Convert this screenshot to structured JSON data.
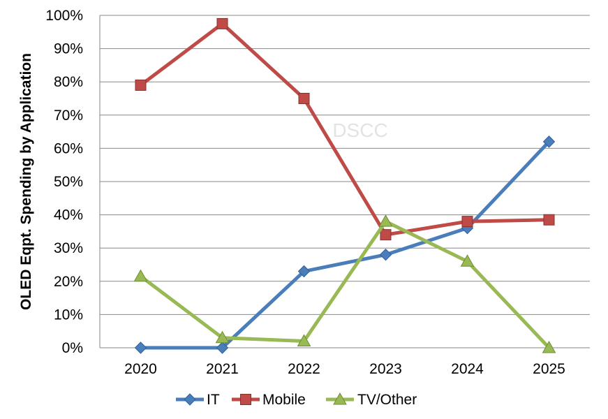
{
  "chart_data": {
    "type": "line",
    "categories": [
      "2020",
      "2021",
      "2022",
      "2023",
      "2024",
      "2025"
    ],
    "series": [
      {
        "name": "IT",
        "values": [
          0,
          0,
          23,
          28,
          36,
          62
        ],
        "color": "#4a7ebb",
        "marker": "diamond"
      },
      {
        "name": "Mobile",
        "values": [
          79,
          97.5,
          75,
          34,
          38,
          38.5
        ],
        "color": "#be4b48",
        "marker": "square"
      },
      {
        "name": "TV/Other",
        "values": [
          21.5,
          3,
          2,
          38,
          26,
          0
        ],
        "color": "#98b954",
        "marker": "triangle"
      }
    ],
    "ylabel": "OLED Eqpt. Spending by Application",
    "xlabel": "",
    "ylim": [
      0,
      100
    ],
    "y_ticks": [
      "0%",
      "10%",
      "20%",
      "30%",
      "40%",
      "50%",
      "60%",
      "70%",
      "80%",
      "90%",
      "100%"
    ],
    "grid": "horizontal",
    "legend_position": "bottom",
    "watermark": "DSCC"
  }
}
